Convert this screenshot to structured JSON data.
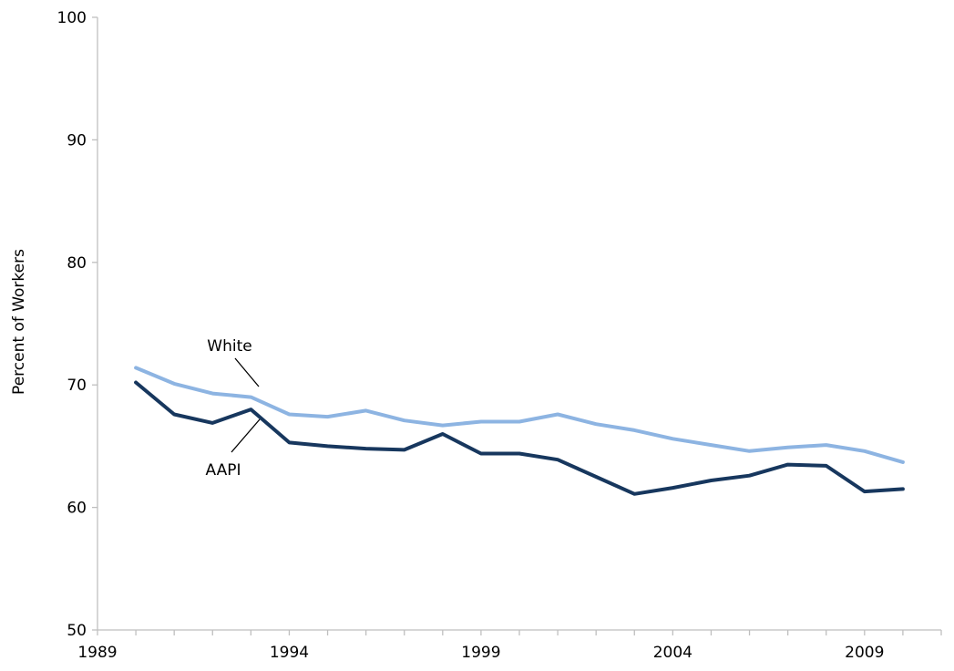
{
  "chart_data": {
    "type": "line",
    "title": "",
    "xlabel": "",
    "ylabel": "Percent of Workers",
    "xlim": [
      1989,
      2011
    ],
    "ylim": [
      50,
      100
    ],
    "x_ticks": [
      1989,
      1994,
      1999,
      2004,
      2009
    ],
    "y_ticks": [
      50,
      60,
      70,
      80,
      90,
      100
    ],
    "grid": false,
    "legend": "none (series labeled directly on the chart with leader lines)",
    "x": [
      1990,
      1991,
      1992,
      1993,
      1994,
      1995,
      1996,
      1997,
      1998,
      1999,
      2000,
      2001,
      2002,
      2003,
      2004,
      2005,
      2006,
      2007,
      2008,
      2009,
      2010
    ],
    "series": [
      {
        "name": "White",
        "color": "#8db4e2",
        "values": [
          71.4,
          70.1,
          69.3,
          69.0,
          67.6,
          67.4,
          67.9,
          67.1,
          66.7,
          67.0,
          67.0,
          67.6,
          66.8,
          66.3,
          65.6,
          65.1,
          64.6,
          64.9,
          65.1,
          64.6,
          63.7
        ]
      },
      {
        "name": "AAPI",
        "color": "#17375e",
        "values": [
          70.2,
          67.6,
          66.9,
          68.0,
          65.3,
          65.0,
          64.8,
          64.7,
          66.0,
          64.4,
          64.4,
          63.9,
          62.5,
          61.1,
          61.6,
          62.2,
          62.6,
          63.5,
          63.4,
          61.3,
          61.5
        ]
      }
    ]
  }
}
